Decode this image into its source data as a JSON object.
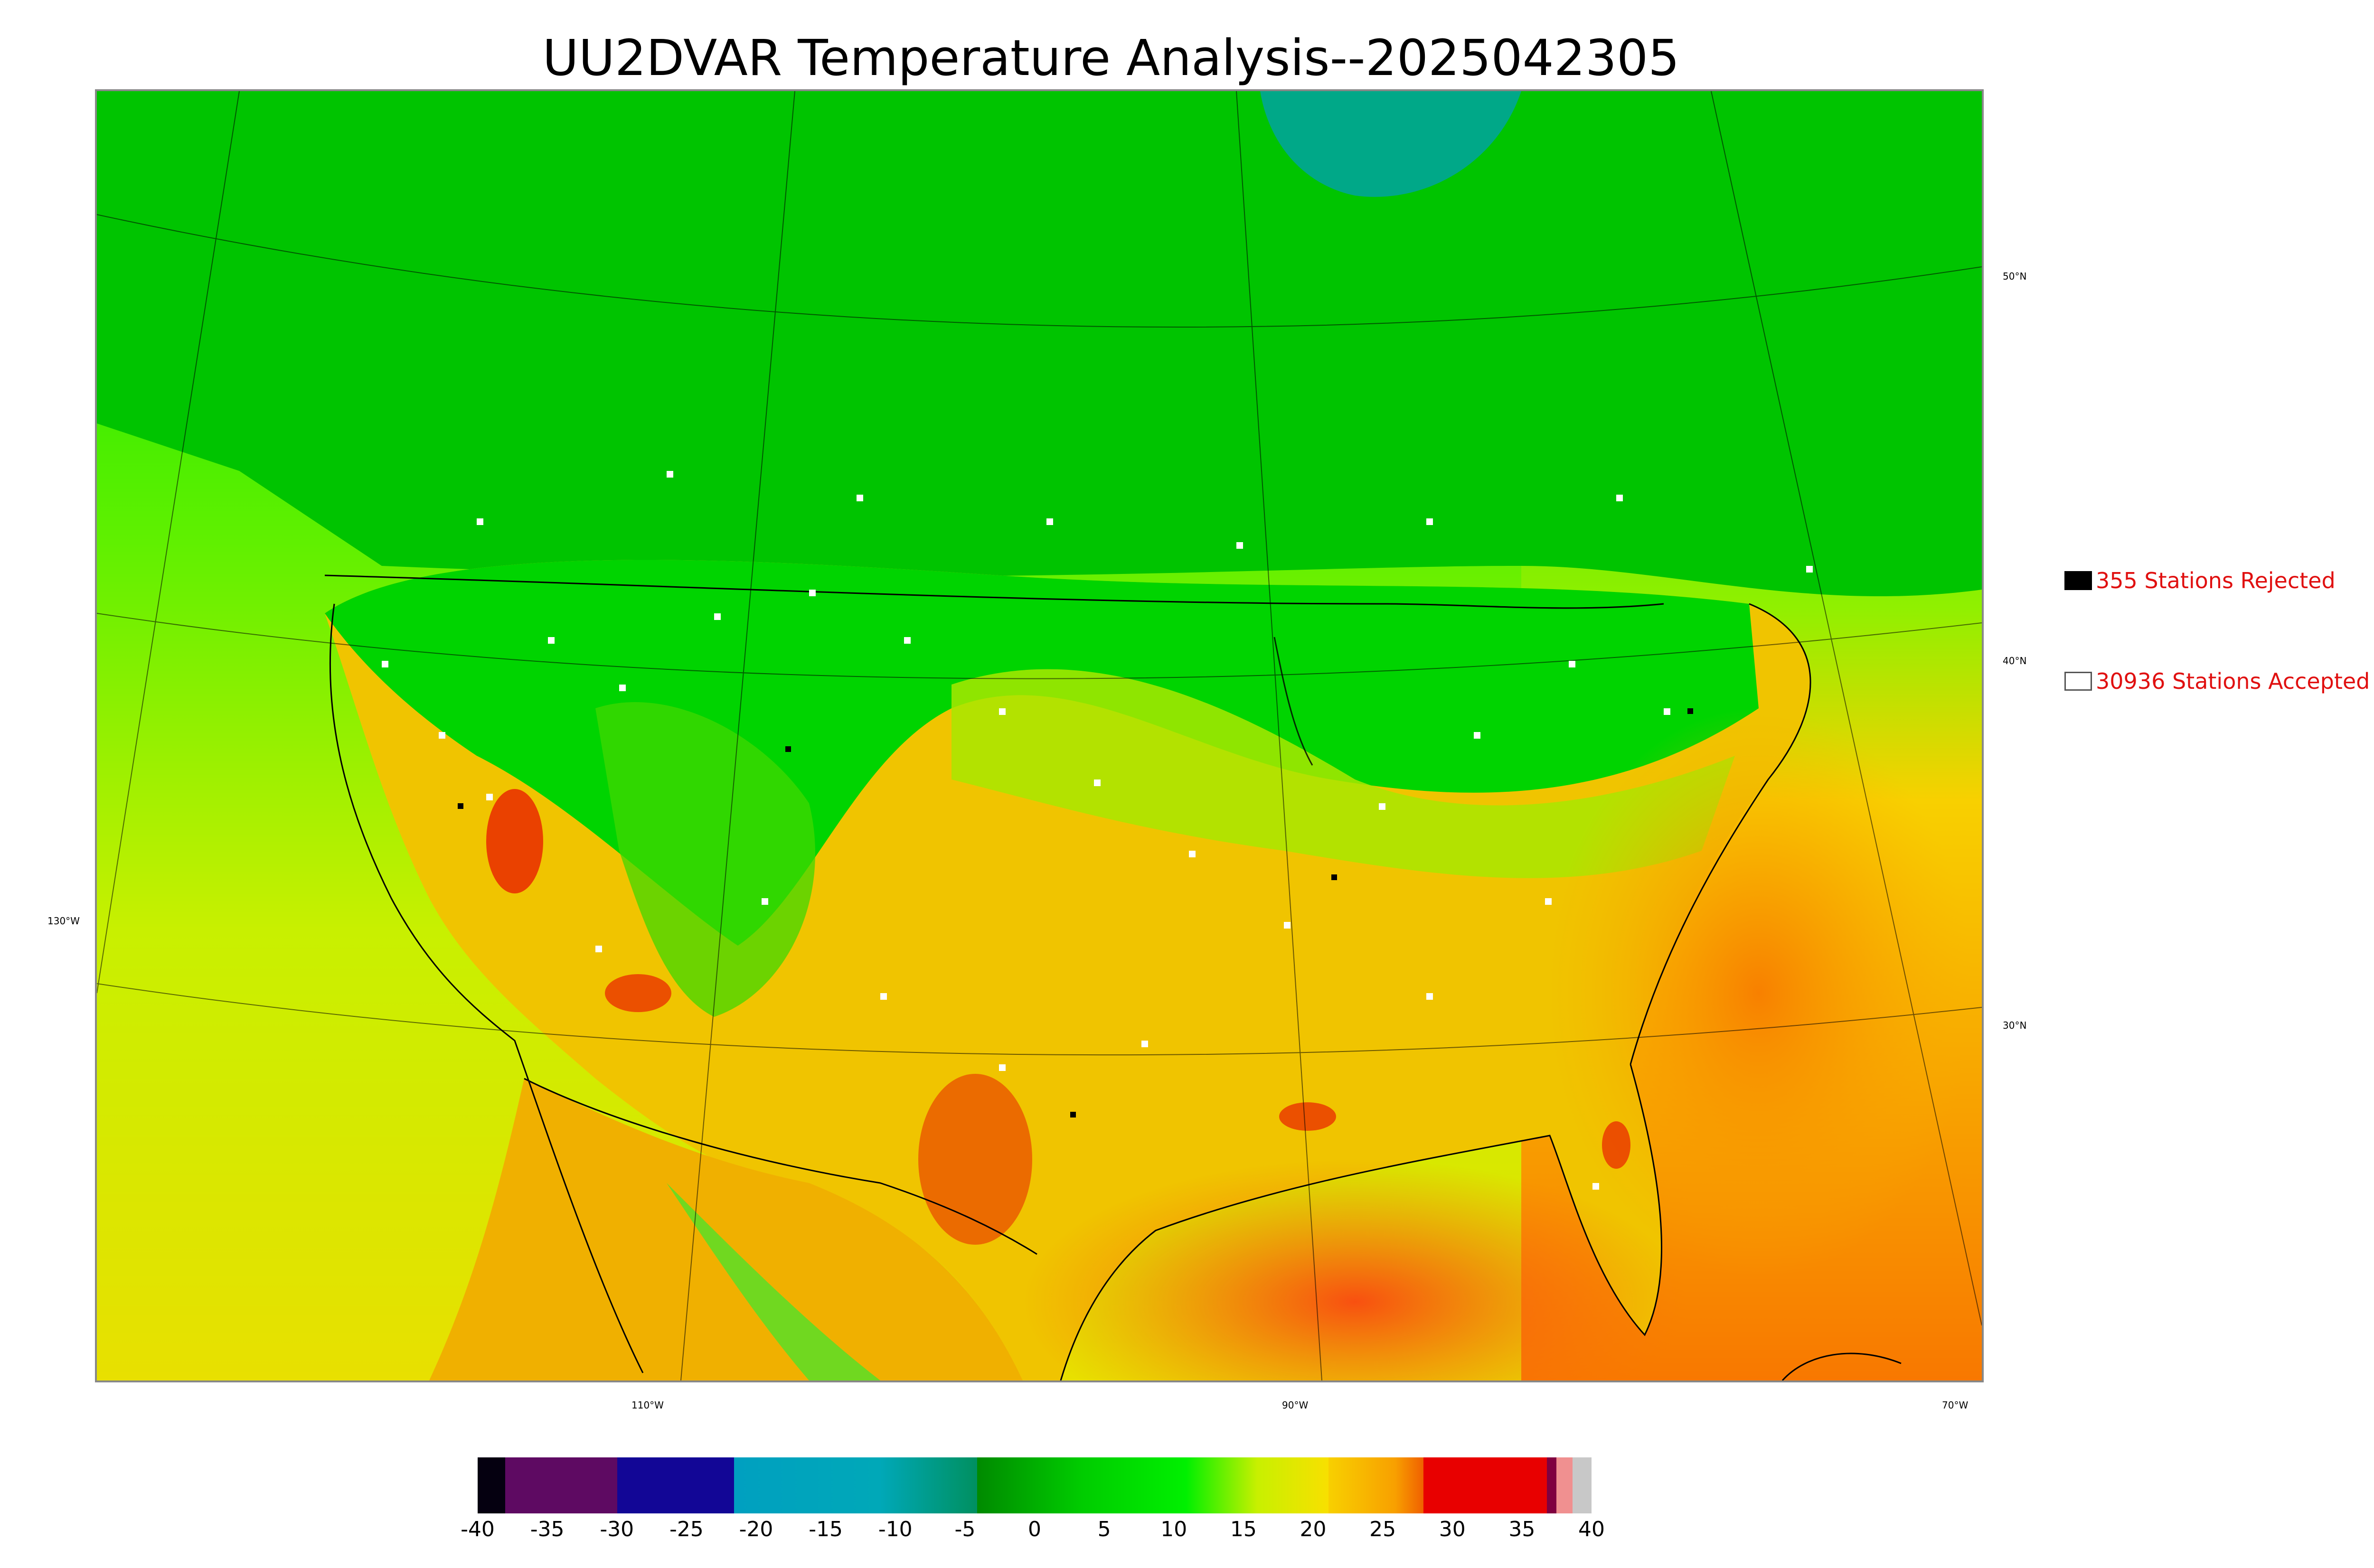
{
  "title": "UU2DVAR Temperature Analysis--2025042305",
  "legend": {
    "rejected": {
      "count_label": "355 Stations Rejected",
      "swatch_color": "#000000"
    },
    "accepted": {
      "count_label": "30936 Stations Accepted",
      "swatch_color": "#ffffff"
    }
  },
  "lat_labels": [
    "50°N",
    "40°N",
    "30°N"
  ],
  "lon_labels": [
    "130°W",
    "110°W",
    "90°W",
    "70°W"
  ],
  "colorbar": {
    "ticks": [
      "-40",
      "-35",
      "-30",
      "-25",
      "-20",
      "-15",
      "-10",
      "-5",
      "0",
      "5",
      "10",
      "15",
      "20",
      "25",
      "30",
      "35",
      "40"
    ],
    "min": -40,
    "max": 40,
    "colors": {
      "very_cold": "#050010",
      "purple": "#5e0a62",
      "navy": "#120696",
      "cyan": "#00a0c0",
      "green_dark": "#008a00",
      "green": "#00ee00",
      "yellow_green": "#c8f000",
      "yellow": "#f8d800",
      "orange": "#f89800",
      "red": "#e80000",
      "gray": "#c8c8c8"
    }
  },
  "map": {
    "colors": {
      "ocean_pacific": "#b8f000",
      "ocean_atlantic_warm": "#f8a000",
      "gulf": "#f87010",
      "canada_north": "#00c800",
      "hudson_bay": "#00b090",
      "northern_plains": "#00d800",
      "southern_us": "#f0c000",
      "desert_hot": "#e82000",
      "station_accepted": "#ffffff",
      "station_rejected": "#000000"
    }
  }
}
